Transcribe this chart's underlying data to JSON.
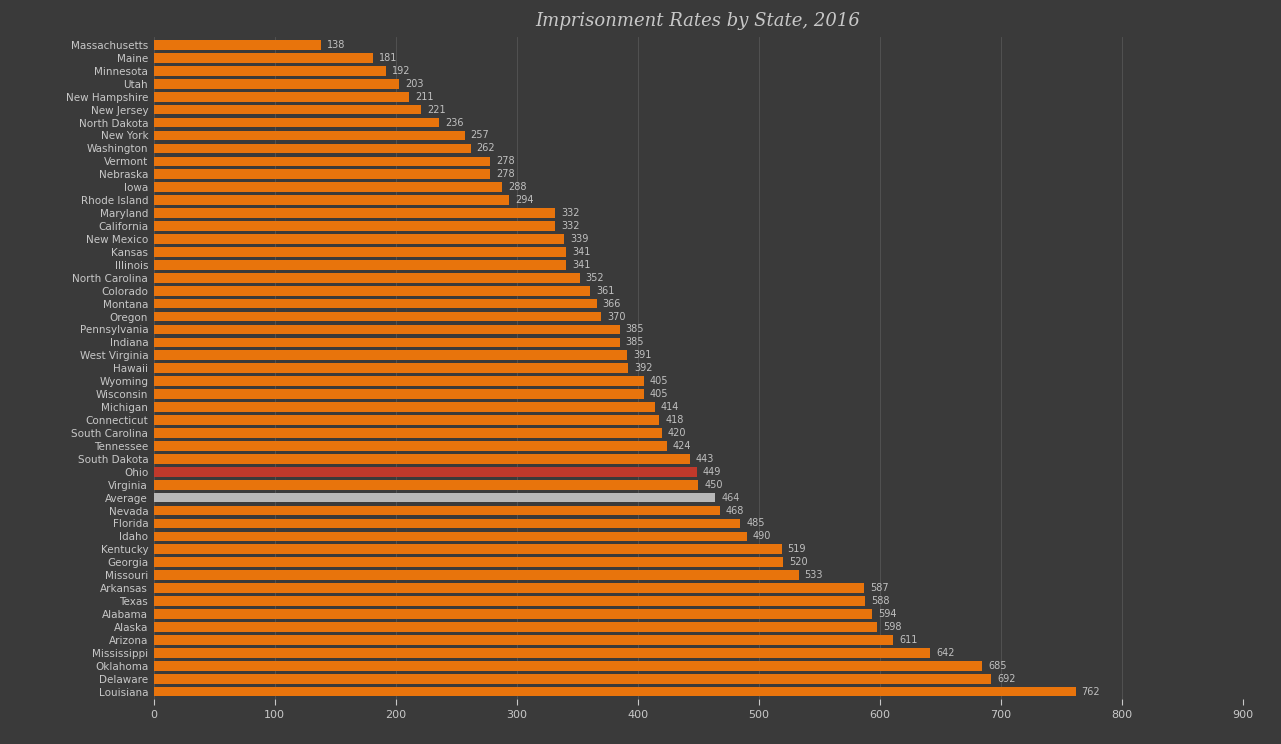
{
  "title": "Imprisonment Rates by State, 2016",
  "background_color": "#3A3A3A",
  "bar_color_default": "#E8740C",
  "bar_color_ohio": "#C0392B",
  "bar_color_average": "#B8B8B8",
  "text_color": "#C8C8C8",
  "label_color": "#C0C0C0",
  "states": [
    "Massachusetts",
    "Maine",
    "Minnesota",
    "Utah",
    "New Hampshire",
    "New Jersey",
    "North Dakota",
    "New York",
    "Washington",
    "Vermont",
    "Nebraska",
    "Iowa",
    "Rhode Island",
    "Maryland",
    "California",
    "New Mexico",
    "Kansas",
    "Illinois",
    "North Carolina",
    "Colorado",
    "Montana",
    "Oregon",
    "Pennsylvania",
    "Indiana",
    "West Virginia",
    "Hawaii",
    "Wyoming",
    "Wisconsin",
    "Michigan",
    "Connecticut",
    "South Carolina",
    "Tennessee",
    "South Dakota",
    "Ohio",
    "Virginia",
    "Average",
    "Nevada",
    "Florida",
    "Idaho",
    "Kentucky",
    "Georgia",
    "Missouri",
    "Arkansas",
    "Texas",
    "Alabama",
    "Alaska",
    "Arizona",
    "Mississippi",
    "Oklahoma",
    "Delaware",
    "Louisiana"
  ],
  "values": [
    138,
    181,
    192,
    203,
    211,
    221,
    236,
    257,
    262,
    278,
    278,
    288,
    294,
    332,
    332,
    339,
    341,
    341,
    352,
    361,
    366,
    370,
    385,
    385,
    391,
    392,
    405,
    405,
    414,
    418,
    420,
    424,
    443,
    449,
    450,
    464,
    468,
    485,
    490,
    519,
    520,
    533,
    587,
    588,
    594,
    598,
    611,
    642,
    685,
    692,
    762
  ],
  "xlim": [
    0,
    900
  ],
  "xticks": [
    0,
    100,
    200,
    300,
    400,
    500,
    600,
    700,
    800,
    900
  ],
  "bar_height": 0.75,
  "label_fontsize": 7.0,
  "ytick_fontsize": 7.5,
  "xtick_fontsize": 8.0,
  "title_fontsize": 13
}
